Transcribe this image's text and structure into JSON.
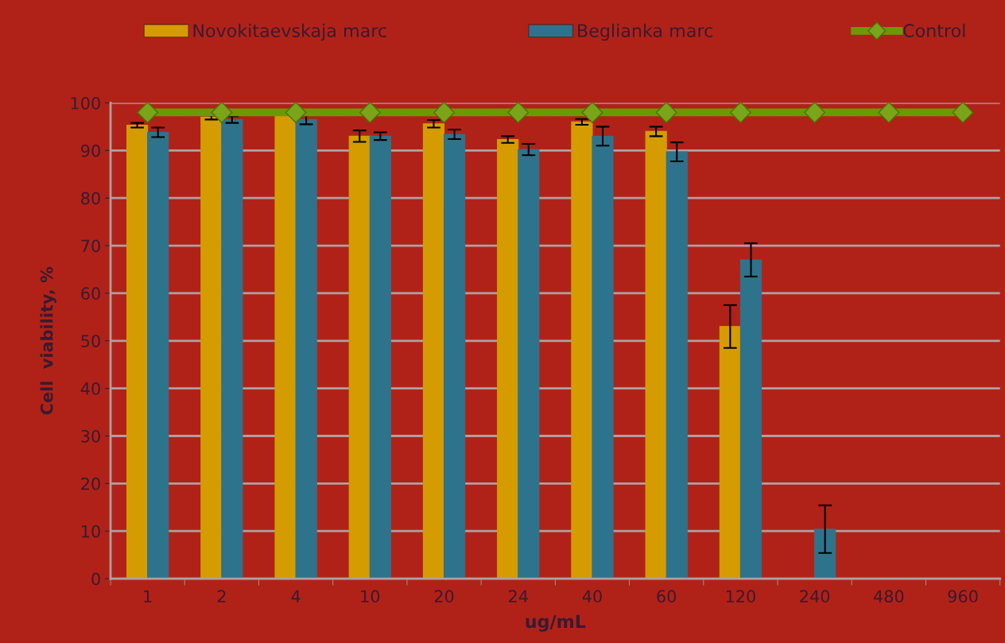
{
  "chart_data": {
    "type": "bar",
    "xlabel": "ug/mL",
    "ylabel": "Cell  viability, %",
    "categories": [
      "1",
      "2",
      "4",
      "10",
      "20",
      "24",
      "40",
      "60",
      "120",
      "240",
      "480",
      "960"
    ],
    "series": [
      {
        "name": "Novokitaevskaja marc",
        "color": "#d49c00",
        "values": [
          95.3,
          97,
          97.8,
          93,
          95.6,
          92.3,
          96,
          94,
          53,
          0,
          0,
          0
        ],
        "errors": [
          0.5,
          0.5,
          null,
          1.2,
          0.8,
          0.7,
          0.6,
          1,
          4.5,
          null,
          null,
          null
        ]
      },
      {
        "name": "Beglianka marc",
        "color": "#2e738c",
        "values": [
          93.8,
          96.5,
          96.5,
          93,
          93.4,
          90.2,
          93,
          89.7,
          67,
          10.4,
          0,
          0
        ],
        "errors": [
          1,
          0.7,
          1,
          0.8,
          1,
          1.2,
          2,
          2,
          3.5,
          5,
          null,
          null
        ]
      },
      {
        "name": "Control",
        "type": "line",
        "color": "#6b9a00",
        "marker": "diamond",
        "values": [
          98,
          98,
          98,
          98,
          98,
          98,
          98,
          98,
          98,
          98,
          98,
          98
        ]
      }
    ],
    "ylim": [
      0,
      100
    ],
    "yticks": [
      0,
      10,
      20,
      30,
      40,
      50,
      60,
      70,
      80,
      90,
      100
    ],
    "grid": "y",
    "legend": "top"
  }
}
